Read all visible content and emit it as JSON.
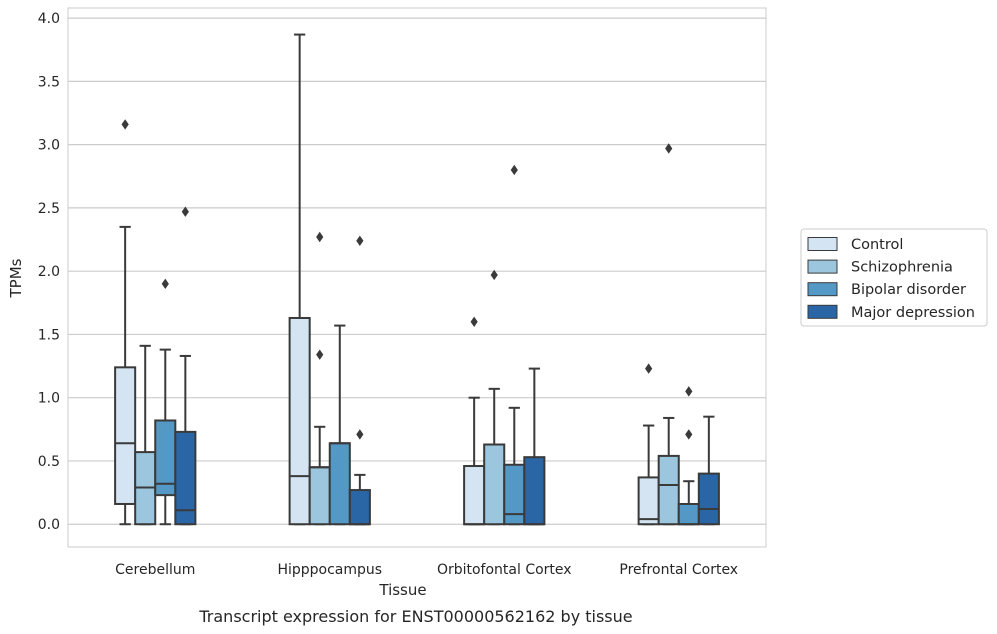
{
  "caption": "Transcript expression for ENST00000562162 by tissue",
  "colors": {
    "Control": "#d4e4f2",
    "Schizophrenia": "#9cc6dd",
    "Bipolar disorder": "#5498c5",
    "Major depression": "#2a66a6",
    "edge": "#3a3a3a",
    "grid": "#cccccc",
    "frame": "#cccccc"
  },
  "chart_data": {
    "type": "box",
    "xlabel": "Tissue",
    "ylabel": "TPMs",
    "ylim": [
      -0.18,
      4.08
    ],
    "yticks": [
      "0.0",
      "0.5",
      "1.0",
      "1.5",
      "2.0",
      "2.5",
      "3.0",
      "3.5",
      "4.0"
    ],
    "grid": "horizontal",
    "legend_position": "right",
    "categories": [
      "Cerebellum",
      "Hipppocampus",
      "Orbitofontal Cortex",
      "Prefrontal Cortex"
    ],
    "series": [
      {
        "name": "Control",
        "boxes": [
          {
            "whislo": 0.0,
            "q1": 0.16,
            "med": 0.64,
            "q3": 1.24,
            "whishi": 2.35,
            "fliers": [
              3.16
            ]
          },
          {
            "whislo": 0.0,
            "q1": 0.0,
            "med": 0.38,
            "q3": 1.63,
            "whishi": 3.87,
            "fliers": []
          },
          {
            "whislo": 0.0,
            "q1": 0.0,
            "med": 0.0,
            "q3": 0.46,
            "whishi": 1.0,
            "fliers": [
              1.6
            ]
          },
          {
            "whislo": 0.0,
            "q1": 0.0,
            "med": 0.04,
            "q3": 0.37,
            "whishi": 0.78,
            "fliers": [
              1.23
            ]
          }
        ]
      },
      {
        "name": "Schizophrenia",
        "boxes": [
          {
            "whislo": 0.0,
            "q1": 0.0,
            "med": 0.29,
            "q3": 0.57,
            "whishi": 1.41,
            "fliers": []
          },
          {
            "whislo": 0.0,
            "q1": 0.0,
            "med": 0.45,
            "q3": 0.45,
            "whishi": 0.77,
            "fliers": [
              1.34,
              2.27
            ]
          },
          {
            "whislo": 0.0,
            "q1": 0.0,
            "med": 0.63,
            "q3": 0.63,
            "whishi": 1.07,
            "fliers": [
              1.97
            ]
          },
          {
            "whislo": 0.0,
            "q1": 0.0,
            "med": 0.31,
            "q3": 0.54,
            "whishi": 0.84,
            "fliers": [
              2.97
            ]
          }
        ]
      },
      {
        "name": "Bipolar disorder",
        "boxes": [
          {
            "whislo": 0.0,
            "q1": 0.23,
            "med": 0.32,
            "q3": 0.82,
            "whishi": 1.38,
            "fliers": [
              1.9
            ]
          },
          {
            "whislo": 0.0,
            "q1": 0.0,
            "med": 0.64,
            "q3": 0.64,
            "whishi": 1.57,
            "fliers": []
          },
          {
            "whislo": 0.0,
            "q1": 0.0,
            "med": 0.08,
            "q3": 0.47,
            "whishi": 0.92,
            "fliers": [
              2.8
            ]
          },
          {
            "whislo": 0.0,
            "q1": 0.0,
            "med": 0.0,
            "q3": 0.16,
            "whishi": 0.34,
            "fliers": [
              0.71,
              1.05
            ]
          }
        ]
      },
      {
        "name": "Major depression",
        "boxes": [
          {
            "whislo": 0.0,
            "q1": 0.0,
            "med": 0.11,
            "q3": 0.73,
            "whishi": 1.33,
            "fliers": [
              2.47
            ]
          },
          {
            "whislo": 0.0,
            "q1": 0.0,
            "med": 0.0,
            "q3": 0.27,
            "whishi": 0.39,
            "fliers": [
              0.71,
              2.24
            ]
          },
          {
            "whislo": 0.0,
            "q1": 0.0,
            "med": 0.0,
            "q3": 0.53,
            "whishi": 1.23,
            "fliers": []
          },
          {
            "whislo": 0.0,
            "q1": 0.0,
            "med": 0.12,
            "q3": 0.4,
            "whishi": 0.85,
            "fliers": []
          }
        ]
      }
    ]
  }
}
